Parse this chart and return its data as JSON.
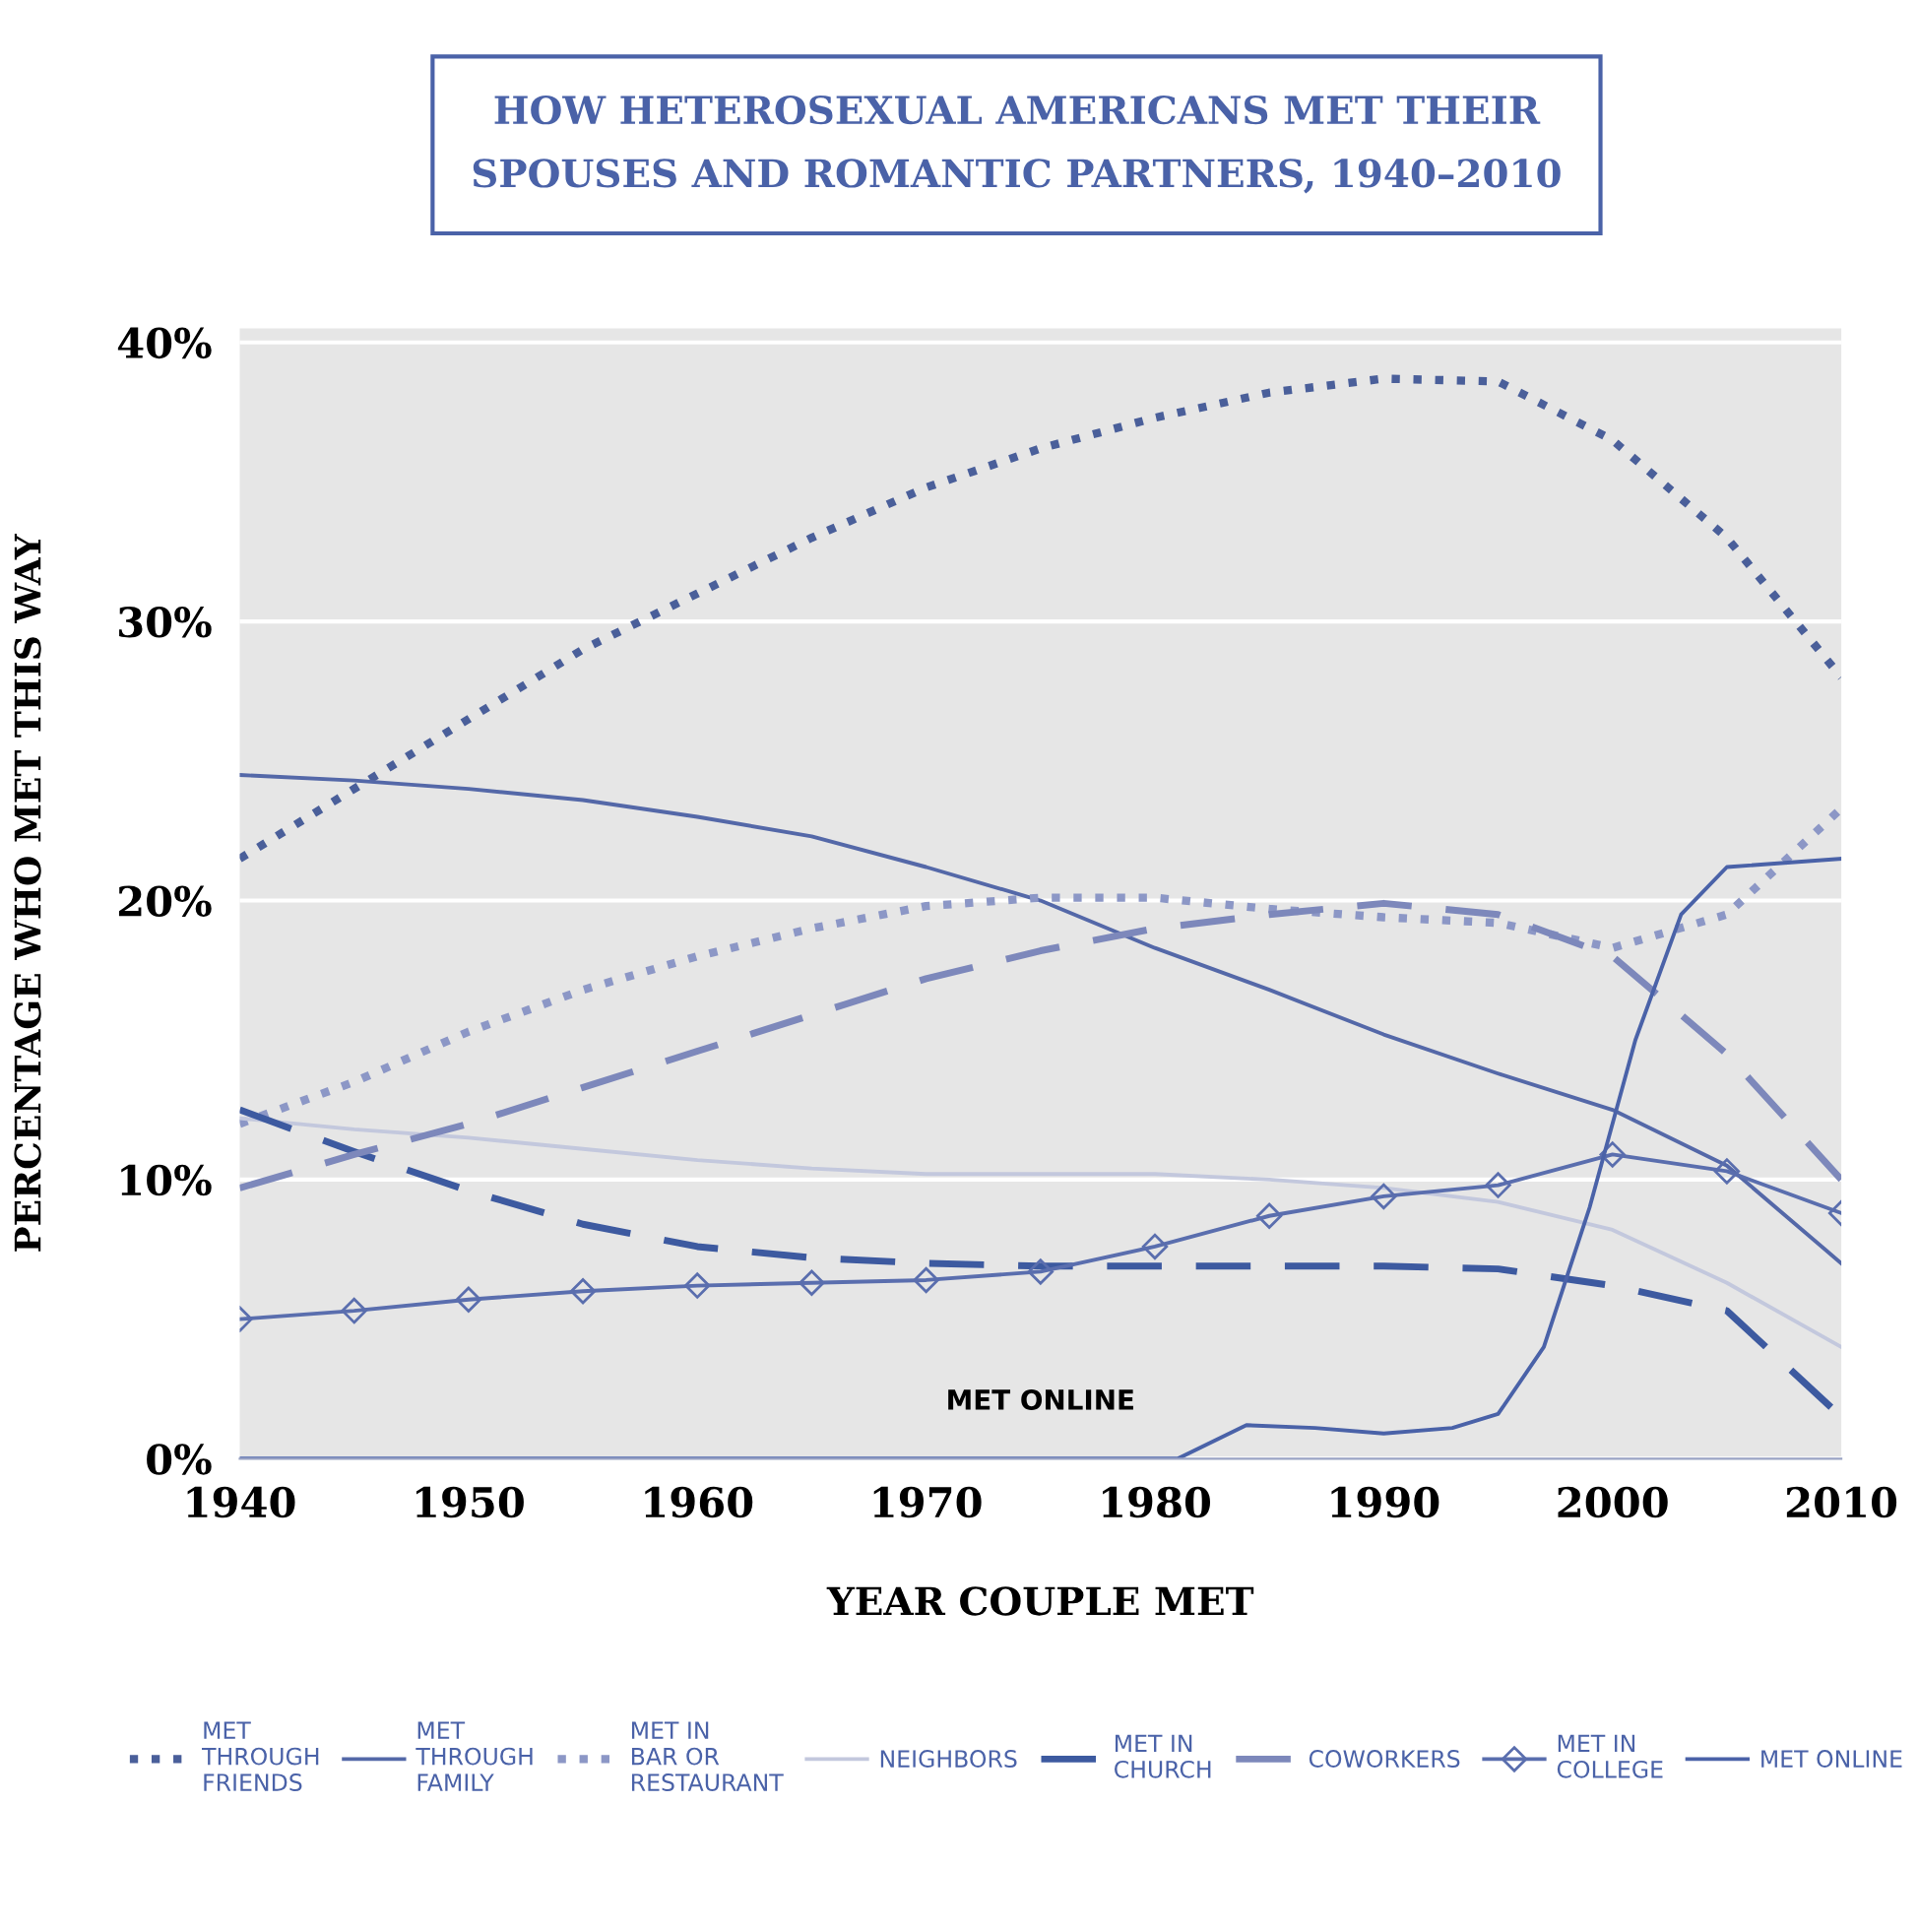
{
  "chart_data": {
    "type": "line",
    "title": "HOW HETEROSEXUAL AMERICANS MET THEIR\nSPOUSES AND ROMANTIC PARTNERS, 1940–2010",
    "xlabel": "YEAR COUPLE MET",
    "ylabel": "PERCENTAGE WHO MET THIS WAY",
    "x": [
      1940,
      1945,
      1950,
      1955,
      1960,
      1965,
      1970,
      1975,
      1980,
      1985,
      1990,
      1995,
      2000,
      2005,
      2010
    ],
    "series": [
      {
        "name": "MET\nTHROUGH\nFRIENDS",
        "color": "#4a5f9a",
        "line_style": "dotted",
        "values": [
          21.5,
          24,
          26.5,
          29,
          31,
          33,
          34.8,
          36.2,
          37.3,
          38.2,
          38.7,
          38.6,
          36.5,
          33,
          28
        ]
      },
      {
        "name": "MET\nTHROUGH\nFAMILY",
        "color": "#5468a8",
        "line_style": "solid",
        "values": [
          24.5,
          24.3,
          24,
          23.6,
          23,
          22.3,
          21.2,
          20,
          18.3,
          16.8,
          15.2,
          13.8,
          12.5,
          10.5,
          7
        ]
      },
      {
        "name": "MET IN\nBAR OR\nRESTAURANT",
        "color": "#8c97c6",
        "line_style": "dotted",
        "values": [
          12,
          13.5,
          15.3,
          16.8,
          18,
          19,
          19.8,
          20.1,
          20.1,
          19.7,
          19.4,
          19.2,
          18.3,
          19.5,
          23.3
        ]
      },
      {
        "name": "NEIGHBORS",
        "color": "#c3c8dd",
        "line_style": "solid",
        "values": [
          12.2,
          11.8,
          11.5,
          11.1,
          10.7,
          10.4,
          10.2,
          10.2,
          10.2,
          10,
          9.7,
          9.2,
          8.2,
          6.3,
          4
        ]
      },
      {
        "name": "MET IN\nCHURCH",
        "color": "#3d5aa0",
        "line_style": "dashed",
        "values": [
          12.5,
          11,
          9.6,
          8.4,
          7.6,
          7.2,
          7,
          6.9,
          6.9,
          6.9,
          6.9,
          6.8,
          6.2,
          5.3,
          1.5
        ]
      },
      {
        "name": "COWORKERS",
        "color": "#7d88bb",
        "line_style": "dashed",
        "values": [
          9.7,
          10.9,
          12,
          13.3,
          14.6,
          15.9,
          17.2,
          18.2,
          19,
          19.5,
          19.9,
          19.5,
          18,
          14.5,
          10
        ]
      },
      {
        "name": "MET IN\nCOLLEGE",
        "color": "#5a6eae",
        "line_style": "solid",
        "marker": "diamond",
        "values": [
          5,
          5.3,
          5.7,
          6,
          6.2,
          6.3,
          6.4,
          6.7,
          7.6,
          8.7,
          9.4,
          9.8,
          10.9,
          10.3,
          8.8
        ]
      },
      {
        "name": "MET ONLINE",
        "color": "#4a62a8",
        "line_style": "solid",
        "x": [
          1940,
          1981,
          1984,
          1987,
          1990,
          1993,
          1995,
          1997,
          1999,
          2001,
          2003,
          2005,
          2010
        ],
        "values": [
          0,
          0,
          1.2,
          1.1,
          0.9,
          1.1,
          1.6,
          4,
          9,
          15,
          19.5,
          21.2,
          21.5
        ]
      }
    ],
    "annotations": [
      "MET ONLINE"
    ],
    "xlim": [
      1940,
      2010
    ],
    "ylim": [
      0,
      40.5
    ],
    "xticks": [
      1940,
      1950,
      1960,
      1970,
      1980,
      1990,
      2000,
      2010
    ],
    "yticks": [
      {
        "value": 0,
        "label": "0%"
      },
      {
        "value": 10,
        "label": "10%"
      },
      {
        "value": 20,
        "label": "20%"
      },
      {
        "value": 30,
        "label": "30%"
      },
      {
        "value": 40,
        "label": "40%"
      }
    ],
    "grid": "y",
    "legend": "bottom"
  }
}
